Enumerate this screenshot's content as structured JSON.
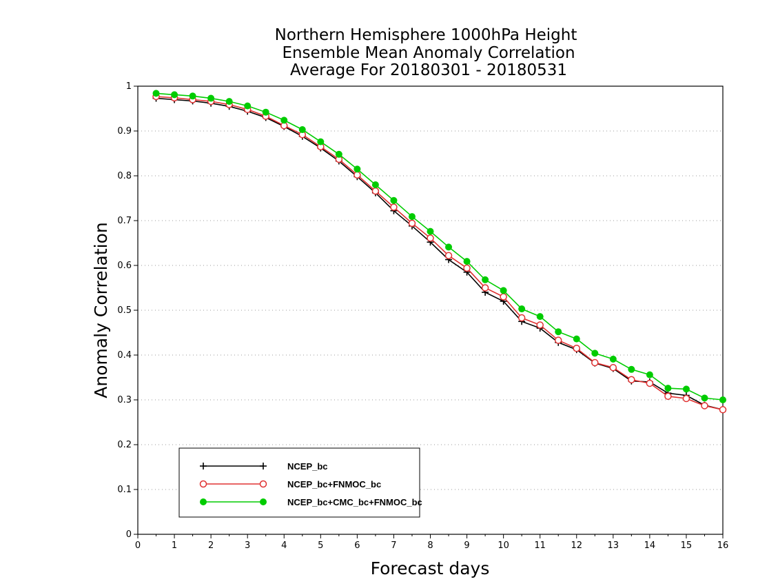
{
  "chart_data": {
    "type": "line",
    "title": [
      "Northern Hemisphere 1000hPa Height",
      "Ensemble Mean Anomaly Correlation",
      "Average For 20180301 - 20180531"
    ],
    "xlabel": "Forecast days",
    "ylabel": "Anomaly Correlation",
    "xlim": [
      0,
      16
    ],
    "ylim": [
      0,
      1
    ],
    "x_ticks": [
      "0",
      "1",
      "2",
      "3",
      "4",
      "5",
      "6",
      "7",
      "8",
      "9",
      "10",
      "11",
      "12",
      "13",
      "14",
      "15",
      "16"
    ],
    "y_ticks": [
      "0",
      "0.1",
      "0.2",
      "0.3",
      "0.4",
      "0.5",
      "0.6",
      "0.7",
      "0.8",
      "0.9",
      "1"
    ],
    "grid": "horizontal dotted",
    "legend_position": "bottom-left",
    "x": [
      0.5,
      1,
      1.5,
      2,
      2.5,
      3,
      3.5,
      4,
      4.5,
      5,
      5.5,
      6,
      6.5,
      7,
      7.5,
      8,
      8.5,
      9,
      9.5,
      10,
      10.5,
      11,
      11.5,
      12,
      12.5,
      13,
      13.5,
      14,
      14.5,
      15,
      15.5,
      16
    ],
    "series": [
      {
        "name": "NCEP_bc",
        "color": "#000000",
        "marker": "plus",
        "values": [
          0.973,
          0.97,
          0.967,
          0.962,
          0.955,
          0.944,
          0.93,
          0.91,
          0.888,
          0.862,
          0.833,
          0.798,
          0.762,
          0.722,
          0.688,
          0.652,
          0.613,
          0.585,
          0.54,
          0.52,
          0.475,
          0.46,
          0.428,
          0.412,
          0.382,
          0.37,
          0.342,
          0.34,
          0.315,
          0.31,
          0.288,
          0.278
        ]
      },
      {
        "name": "NCEP_bc+FNMOC_bc",
        "color": "#e03030",
        "marker": "open-circle",
        "values": [
          0.977,
          0.974,
          0.97,
          0.966,
          0.959,
          0.948,
          0.933,
          0.912,
          0.892,
          0.865,
          0.837,
          0.802,
          0.766,
          0.73,
          0.694,
          0.661,
          0.622,
          0.594,
          0.55,
          0.53,
          0.483,
          0.467,
          0.433,
          0.415,
          0.383,
          0.372,
          0.345,
          0.337,
          0.308,
          0.303,
          0.287,
          0.278
        ]
      },
      {
        "name": "NCEP_bc+CMC_bc+FNMOC_bc",
        "color": "#00cc00",
        "marker": "filled-circle",
        "values": [
          0.984,
          0.981,
          0.978,
          0.973,
          0.966,
          0.956,
          0.942,
          0.924,
          0.903,
          0.876,
          0.848,
          0.815,
          0.78,
          0.745,
          0.709,
          0.676,
          0.641,
          0.609,
          0.568,
          0.544,
          0.503,
          0.486,
          0.452,
          0.436,
          0.404,
          0.391,
          0.368,
          0.356,
          0.326,
          0.324,
          0.304,
          0.3
        ]
      }
    ]
  }
}
